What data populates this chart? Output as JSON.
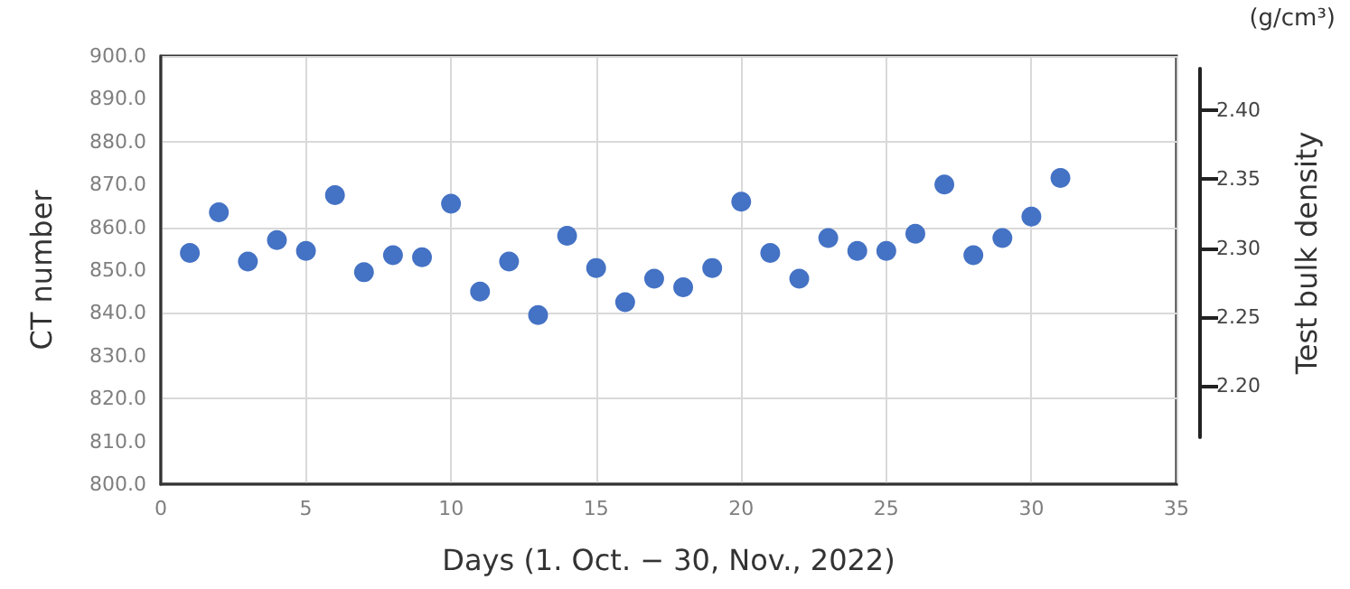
{
  "chart_data": {
    "type": "scatter",
    "xlabel": "Days (1. Oct. − 30, Nov., 2022)",
    "ylabel": "CT number",
    "y2label": "Test bulk density",
    "annotations": [
      "(g/cm³)"
    ],
    "x": [
      1,
      2,
      3,
      4,
      5,
      6,
      7,
      8,
      9,
      10,
      11,
      12,
      13,
      14,
      15,
      16,
      17,
      18,
      19,
      20,
      21,
      22,
      23,
      24,
      25,
      26,
      27,
      28,
      29,
      30,
      31
    ],
    "series": [
      {
        "color": "#4472c4",
        "values": [
          854,
          863.5,
          852,
          857,
          854.5,
          867.5,
          849.5,
          853.5,
          853,
          865.5,
          845,
          852,
          839.5,
          858,
          850.5,
          842.5,
          848,
          846,
          850.5,
          866,
          854,
          848,
          857.5,
          854.5,
          854.5,
          858.5,
          870,
          853.5,
          857.5,
          862.5,
          871.5
        ]
      }
    ],
    "xlim": [
      0,
      35
    ],
    "xticks": [
      0,
      5,
      10,
      15,
      20,
      25,
      30,
      35
    ],
    "ylim": [
      800,
      900
    ],
    "yticks": [
      {
        "value": 800,
        "label": "800.0"
      },
      {
        "value": 810,
        "label": "810.0"
      },
      {
        "value": 820,
        "label": "820.0"
      },
      {
        "value": 830,
        "label": "830.0"
      },
      {
        "value": 840,
        "label": "840.0"
      },
      {
        "value": 850,
        "label": "850.0"
      },
      {
        "value": 860,
        "label": "860.0"
      },
      {
        "value": 870,
        "label": "870.0"
      },
      {
        "value": 880,
        "label": "880.0"
      },
      {
        "value": 890,
        "label": "890.0"
      },
      {
        "value": 900,
        "label": "900.0"
      }
    ],
    "y2lim": [
      2.163,
      2.43
    ],
    "y2ticks": [
      {
        "value": 2.2,
        "label": "2.20"
      },
      {
        "value": 2.25,
        "label": "2.25"
      },
      {
        "value": 2.3,
        "label": "2.30"
      },
      {
        "value": 2.35,
        "label": "2.35"
      },
      {
        "value": 2.4,
        "label": "2.40"
      }
    ],
    "grid": true,
    "marker": "circle"
  }
}
